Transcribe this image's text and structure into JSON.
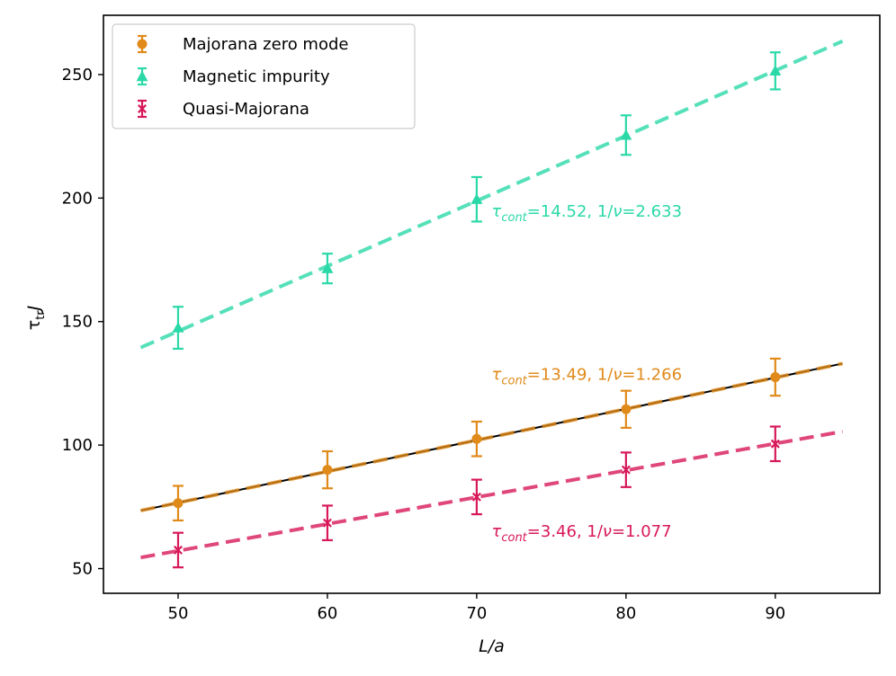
{
  "chart_data": {
    "type": "scatter",
    "xlabel": "L/a",
    "ylabel": "τ_tr J",
    "ylabel_main": "τ",
    "ylabel_sub": "tr",
    "ylabel_tail": "J",
    "xlim": [
      45,
      97
    ],
    "ylim": [
      40,
      274
    ],
    "xticks": [
      50,
      60,
      70,
      80,
      90
    ],
    "yticks": [
      50,
      100,
      150,
      200,
      250
    ],
    "legend_position": "top-left",
    "fit_range": [
      47.5,
      94.5
    ],
    "series": [
      {
        "name": "Majorana zero mode",
        "color": "#E08A1A",
        "marker": "circle",
        "x": [
          50,
          60,
          70,
          80,
          90
        ],
        "y": [
          76.5,
          90,
          102.5,
          114.5,
          127.5
        ],
        "err": [
          7,
          7.5,
          7,
          7.5,
          7.5
        ],
        "fit": {
          "y0": 73.5,
          "y1": 133,
          "solid_black": true
        },
        "annotation": {
          "tau": "τ",
          "sub": "cont",
          "rest": "=13.49, 1/",
          "nu": "ν",
          "tail": "=1.266",
          "x": 71,
          "y": 126.5
        }
      },
      {
        "name": "Magnetic impurity",
        "color": "#2BD9A8",
        "marker": "triangle",
        "x": [
          50,
          60,
          70,
          80,
          90
        ],
        "y": [
          147.5,
          171.5,
          199.5,
          225.5,
          251.5
        ],
        "err": [
          8.5,
          6,
          9,
          8,
          7.5
        ],
        "fit": {
          "y0": 139.5,
          "y1": 263.5,
          "solid_black": false
        },
        "annotation": {
          "tau": "τ",
          "sub": "cont",
          "rest": "=14.52, 1/",
          "nu": "ν",
          "tail": "=2.633",
          "x": 71,
          "y": 192.5
        }
      },
      {
        "name": "Quasi-Majorana",
        "color": "#D8185A",
        "marker": "x",
        "x": [
          50,
          60,
          70,
          80,
          90
        ],
        "y": [
          57.5,
          68.5,
          79,
          90,
          100.5
        ],
        "err": [
          7,
          7,
          7,
          7,
          7
        ],
        "fit": {
          "y0": 54.5,
          "y1": 105.5,
          "solid_black": false
        },
        "annotation": {
          "tau": "τ",
          "sub": "cont",
          "rest": "=3.46, 1/",
          "nu": "ν",
          "tail": "=1.077",
          "x": 71,
          "y": 63
        }
      }
    ]
  }
}
